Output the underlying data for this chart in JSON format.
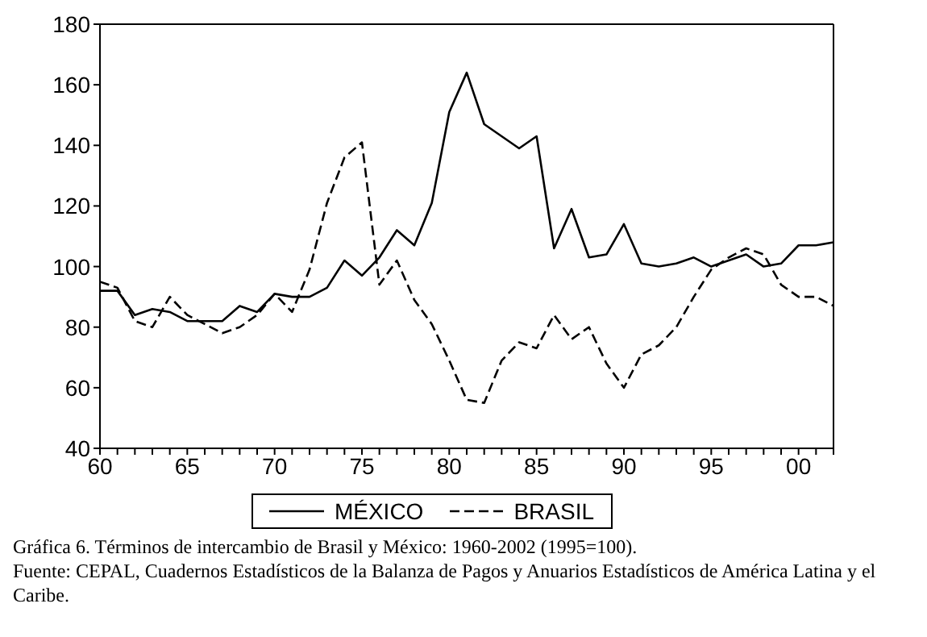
{
  "chart_data": {
    "type": "line",
    "x": [
      1960,
      1961,
      1962,
      1963,
      1964,
      1965,
      1966,
      1967,
      1968,
      1969,
      1970,
      1971,
      1972,
      1973,
      1974,
      1975,
      1976,
      1977,
      1978,
      1979,
      1980,
      1981,
      1982,
      1983,
      1984,
      1985,
      1986,
      1987,
      1988,
      1989,
      1990,
      1991,
      1992,
      1993,
      1994,
      1995,
      1996,
      1997,
      1998,
      1999,
      2000,
      2001,
      2002
    ],
    "series": [
      {
        "name": "MÉXICO",
        "color": "#000000",
        "line_style": "solid",
        "values": [
          92,
          92,
          84,
          86,
          85,
          82,
          82,
          82,
          87,
          85,
          91,
          90,
          90,
          93,
          102,
          97,
          103,
          112,
          107,
          121,
          151,
          164,
          147,
          143,
          139,
          143,
          106,
          119,
          103,
          104,
          114,
          101,
          100,
          101,
          103,
          100,
          102,
          104,
          100,
          101,
          107,
          107,
          108
        ]
      },
      {
        "name": "BRASIL",
        "color": "#000000",
        "line_style": "dashed",
        "values": [
          95,
          93,
          82,
          80,
          90,
          84,
          81,
          78,
          80,
          84,
          91,
          85,
          99,
          121,
          136,
          141,
          94,
          102,
          89,
          81,
          69,
          56,
          55,
          69,
          75,
          73,
          84,
          76,
          80,
          68,
          60,
          71,
          74,
          80,
          90,
          99,
          103,
          106,
          104,
          94,
          90,
          90,
          87
        ]
      }
    ],
    "xlim": [
      1960,
      2002
    ],
    "xticks": [
      {
        "value": 1960,
        "label": "60"
      },
      {
        "value": 1961,
        "label": null
      },
      {
        "value": 1962,
        "label": null
      },
      {
        "value": 1963,
        "label": null
      },
      {
        "value": 1964,
        "label": null
      },
      {
        "value": 1965,
        "label": "65"
      },
      {
        "value": 1966,
        "label": null
      },
      {
        "value": 1967,
        "label": null
      },
      {
        "value": 1968,
        "label": null
      },
      {
        "value": 1969,
        "label": null
      },
      {
        "value": 1970,
        "label": "70"
      },
      {
        "value": 1971,
        "label": null
      },
      {
        "value": 1972,
        "label": null
      },
      {
        "value": 1973,
        "label": null
      },
      {
        "value": 1974,
        "label": null
      },
      {
        "value": 1975,
        "label": "75"
      },
      {
        "value": 1976,
        "label": null
      },
      {
        "value": 1977,
        "label": null
      },
      {
        "value": 1978,
        "label": null
      },
      {
        "value": 1979,
        "label": null
      },
      {
        "value": 1980,
        "label": "80"
      },
      {
        "value": 1981,
        "label": null
      },
      {
        "value": 1982,
        "label": null
      },
      {
        "value": 1983,
        "label": null
      },
      {
        "value": 1984,
        "label": null
      },
      {
        "value": 1985,
        "label": "85"
      },
      {
        "value": 1986,
        "label": null
      },
      {
        "value": 1987,
        "label": null
      },
      {
        "value": 1988,
        "label": null
      },
      {
        "value": 1989,
        "label": null
      },
      {
        "value": 1990,
        "label": "90"
      },
      {
        "value": 1991,
        "label": null
      },
      {
        "value": 1992,
        "label": null
      },
      {
        "value": 1993,
        "label": null
      },
      {
        "value": 1994,
        "label": null
      },
      {
        "value": 1995,
        "label": "95"
      },
      {
        "value": 1996,
        "label": null
      },
      {
        "value": 1997,
        "label": null
      },
      {
        "value": 1998,
        "label": null
      },
      {
        "value": 1999,
        "label": null
      },
      {
        "value": 2000,
        "label": "00"
      },
      {
        "value": 2001,
        "label": null
      },
      {
        "value": 2002,
        "label": null
      }
    ],
    "ylim": [
      40,
      180
    ],
    "yticks": [
      40,
      60,
      80,
      100,
      120,
      140,
      160,
      180
    ],
    "legend": "bottom",
    "marker": "none",
    "grid": false,
    "annotations": [
      "Gráfica 6. Términos de intercambio de Brasil y México: 1960-2002 (1995=100).",
      "Fuente: CEPAL, Cuadernos Estadísticos de la Balanza de Pagos y Anuarios Estadísticos de América Latina y el Caribe."
    ]
  }
}
